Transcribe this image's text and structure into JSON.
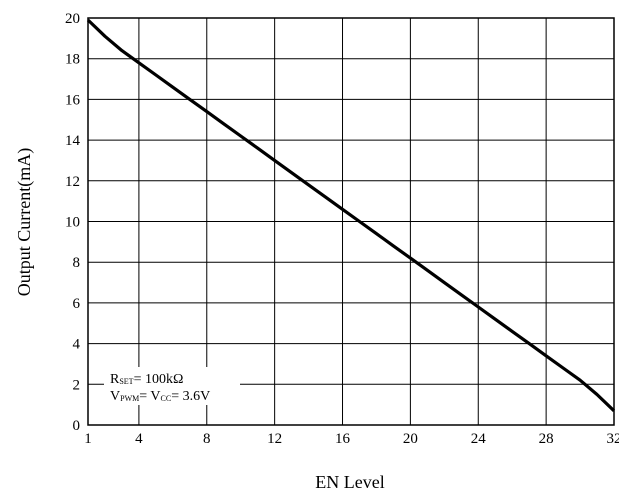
{
  "chart_data": {
    "type": "line",
    "xlabel": "EN Level",
    "ylabel": "Output Current(mA)",
    "xlim": [
      1,
      32
    ],
    "ylim": [
      0,
      20
    ],
    "x_ticks": [
      1,
      4,
      8,
      12,
      16,
      20,
      24,
      28,
      32
    ],
    "y_ticks": [
      0,
      2,
      4,
      6,
      8,
      10,
      12,
      14,
      16,
      18,
      20
    ],
    "grid": true,
    "series": [
      {
        "x": [
          1,
          2,
          3,
          4,
          5,
          6,
          7,
          8,
          9,
          10,
          11,
          12,
          13,
          14,
          15,
          16,
          17,
          18,
          19,
          20,
          21,
          22,
          23,
          24,
          25,
          26,
          27,
          28,
          29,
          30,
          31,
          32
        ],
        "y": [
          19.9,
          19.1,
          18.4,
          17.8,
          17.2,
          16.6,
          16.0,
          15.4,
          14.8,
          14.2,
          13.6,
          13.0,
          12.4,
          11.8,
          11.2,
          10.6,
          10.0,
          9.4,
          8.8,
          8.2,
          7.6,
          7.0,
          6.4,
          5.8,
          5.2,
          4.6,
          4.0,
          3.4,
          2.8,
          2.2,
          1.5,
          0.7
        ],
        "color": "#000000"
      }
    ],
    "annotation": {
      "line1": {
        "sym": "R",
        "sub": "SET",
        "rest": "= 100kΩ"
      },
      "line2": {
        "sym": "V",
        "sub": "PWM",
        "mid": "= V",
        "sub2": "CC",
        "rest": "= 3.6V"
      }
    }
  }
}
